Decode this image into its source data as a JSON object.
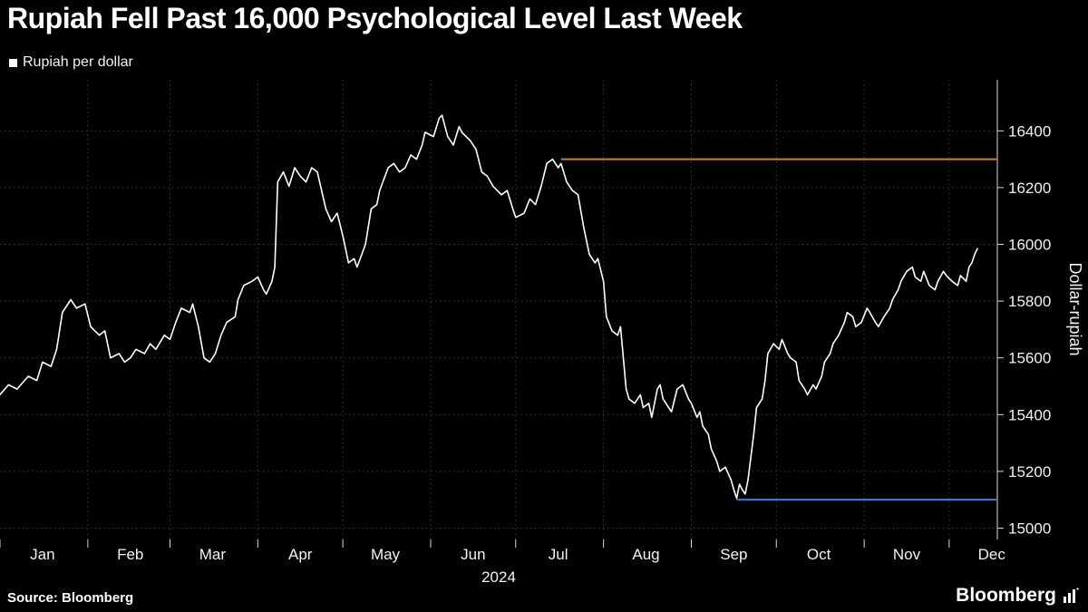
{
  "header": {
    "title": "Rupiah Fell Past 16,000 Psychological Level Last Week",
    "legend": {
      "label": "Rupiah per dollar",
      "swatch_color": "#ffffff"
    }
  },
  "footer": {
    "source": "Source:  Bloomberg",
    "brand": "Bloomberg"
  },
  "chart_data": {
    "type": "line",
    "title": "Rupiah Fell Past 16,000 Psychological Level Last Week",
    "series_name": "Rupiah per dollar",
    "xlabel": "2024",
    "ylabel": "Dollar-rupiah",
    "x_domain": [
      0,
      352
    ],
    "ylim": [
      14960,
      16580
    ],
    "yticks": [
      15000,
      15200,
      15400,
      15600,
      15800,
      16000,
      16200,
      16400
    ],
    "months": [
      "Jan",
      "Feb",
      "Mar",
      "Apr",
      "May",
      "Jun",
      "Jul",
      "Aug",
      "Sep",
      "Oct",
      "Nov",
      "Dec"
    ],
    "month_start_days": [
      0,
      31,
      60,
      91,
      121,
      152,
      182,
      213,
      244,
      274,
      305,
      335
    ],
    "grid": true,
    "legend_position": "top-left",
    "line_color": "#ffffff",
    "grid_color": "#3a3a3a",
    "axis_color": "#d8d8d8",
    "reference_lines": [
      {
        "name": "level-16300",
        "value": 16300,
        "from_day": 198,
        "to_day": 352,
        "color": "#c8832b"
      },
      {
        "name": "level-15100",
        "value": 15100,
        "from_day": 260,
        "to_day": 352,
        "color": "#3f7fdd"
      }
    ],
    "points": [
      [
        0,
        15470
      ],
      [
        3,
        15505
      ],
      [
        6,
        15490
      ],
      [
        10,
        15535
      ],
      [
        13,
        15520
      ],
      [
        15,
        15585
      ],
      [
        18,
        15570
      ],
      [
        20,
        15630
      ],
      [
        22,
        15760
      ],
      [
        25,
        15805
      ],
      [
        27,
        15775
      ],
      [
        30,
        15790
      ],
      [
        32,
        15710
      ],
      [
        35,
        15680
      ],
      [
        37,
        15695
      ],
      [
        39,
        15600
      ],
      [
        42,
        15615
      ],
      [
        44,
        15585
      ],
      [
        46,
        15600
      ],
      [
        48,
        15630
      ],
      [
        51,
        15615
      ],
      [
        53,
        15650
      ],
      [
        55,
        15630
      ],
      [
        58,
        15680
      ],
      [
        60,
        15665
      ],
      [
        62,
        15725
      ],
      [
        64,
        15775
      ],
      [
        67,
        15760
      ],
      [
        68,
        15790
      ],
      [
        70,
        15710
      ],
      [
        72,
        15600
      ],
      [
        74,
        15585
      ],
      [
        76,
        15615
      ],
      [
        78,
        15680
      ],
      [
        80,
        15725
      ],
      [
        83,
        15745
      ],
      [
        84,
        15805
      ],
      [
        86,
        15855
      ],
      [
        89,
        15870
      ],
      [
        91,
        15885
      ],
      [
        93,
        15840
      ],
      [
        94,
        15825
      ],
      [
        96,
        15870
      ],
      [
        97,
        15920
      ],
      [
        98,
        16220
      ],
      [
        100,
        16255
      ],
      [
        102,
        16205
      ],
      [
        104,
        16270
      ],
      [
        106,
        16240
      ],
      [
        108,
        16220
      ],
      [
        110,
        16270
      ],
      [
        112,
        16255
      ],
      [
        115,
        16125
      ],
      [
        117,
        16080
      ],
      [
        119,
        16110
      ],
      [
        121,
        16030
      ],
      [
        123,
        15935
      ],
      [
        125,
        15950
      ],
      [
        126,
        15920
      ],
      [
        129,
        16000
      ],
      [
        131,
        16125
      ],
      [
        133,
        16140
      ],
      [
        134,
        16190
      ],
      [
        137,
        16270
      ],
      [
        139,
        16285
      ],
      [
        141,
        16255
      ],
      [
        143,
        16270
      ],
      [
        145,
        16315
      ],
      [
        147,
        16300
      ],
      [
        149,
        16350
      ],
      [
        150,
        16395
      ],
      [
        153,
        16380
      ],
      [
        155,
        16445
      ],
      [
        156,
        16455
      ],
      [
        158,
        16380
      ],
      [
        160,
        16350
      ],
      [
        162,
        16415
      ],
      [
        163,
        16395
      ],
      [
        166,
        16365
      ],
      [
        168,
        16335
      ],
      [
        170,
        16255
      ],
      [
        172,
        16240
      ],
      [
        174,
        16205
      ],
      [
        177,
        16175
      ],
      [
        179,
        16190
      ],
      [
        181,
        16125
      ],
      [
        182,
        16095
      ],
      [
        185,
        16110
      ],
      [
        187,
        16160
      ],
      [
        189,
        16140
      ],
      [
        191,
        16205
      ],
      [
        193,
        16285
      ],
      [
        195,
        16300
      ],
      [
        197,
        16270
      ],
      [
        198,
        16285
      ],
      [
        200,
        16220
      ],
      [
        202,
        16190
      ],
      [
        204,
        16175
      ],
      [
        206,
        16060
      ],
      [
        208,
        15965
      ],
      [
        210,
        15935
      ],
      [
        211,
        15950
      ],
      [
        213,
        15870
      ],
      [
        214,
        15745
      ],
      [
        216,
        15695
      ],
      [
        218,
        15680
      ],
      [
        219,
        15710
      ],
      [
        221,
        15490
      ],
      [
        222,
        15455
      ],
      [
        224,
        15440
      ],
      [
        226,
        15470
      ],
      [
        227,
        15425
      ],
      [
        229,
        15440
      ],
      [
        230,
        15390
      ],
      [
        232,
        15490
      ],
      [
        233,
        15505
      ],
      [
        234,
        15455
      ],
      [
        236,
        15425
      ],
      [
        237,
        15410
      ],
      [
        239,
        15490
      ],
      [
        241,
        15505
      ],
      [
        243,
        15455
      ],
      [
        244,
        15440
      ],
      [
        246,
        15390
      ],
      [
        247,
        15410
      ],
      [
        248,
        15360
      ],
      [
        250,
        15330
      ],
      [
        251,
        15280
      ],
      [
        253,
        15235
      ],
      [
        254,
        15200
      ],
      [
        256,
        15215
      ],
      [
        258,
        15170
      ],
      [
        259,
        15135
      ],
      [
        260,
        15105
      ],
      [
        261,
        15155
      ],
      [
        262,
        15135
      ],
      [
        263,
        15120
      ],
      [
        264,
        15170
      ],
      [
        266,
        15330
      ],
      [
        267,
        15425
      ],
      [
        269,
        15455
      ],
      [
        270,
        15520
      ],
      [
        271,
        15615
      ],
      [
        273,
        15650
      ],
      [
        275,
        15630
      ],
      [
        276,
        15665
      ],
      [
        278,
        15615
      ],
      [
        279,
        15600
      ],
      [
        281,
        15585
      ],
      [
        282,
        15520
      ],
      [
        284,
        15490
      ],
      [
        285,
        15470
      ],
      [
        287,
        15505
      ],
      [
        288,
        15490
      ],
      [
        290,
        15535
      ],
      [
        291,
        15585
      ],
      [
        293,
        15615
      ],
      [
        294,
        15650
      ],
      [
        296,
        15680
      ],
      [
        298,
        15725
      ],
      [
        299,
        15760
      ],
      [
        301,
        15745
      ],
      [
        302,
        15710
      ],
      [
        304,
        15725
      ],
      [
        306,
        15775
      ],
      [
        307,
        15760
      ],
      [
        309,
        15725
      ],
      [
        310,
        15710
      ],
      [
        312,
        15745
      ],
      [
        314,
        15775
      ],
      [
        315,
        15805
      ],
      [
        317,
        15840
      ],
      [
        318,
        15870
      ],
      [
        320,
        15905
      ],
      [
        322,
        15920
      ],
      [
        323,
        15885
      ],
      [
        325,
        15870
      ],
      [
        326,
        15905
      ],
      [
        328,
        15855
      ],
      [
        330,
        15840
      ],
      [
        331,
        15870
      ],
      [
        333,
        15905
      ],
      [
        334,
        15890
      ],
      [
        336,
        15870
      ],
      [
        338,
        15855
      ],
      [
        339,
        15890
      ],
      [
        341,
        15870
      ],
      [
        342,
        15920
      ],
      [
        343,
        15935
      ],
      [
        344,
        15965
      ],
      [
        345,
        15985
      ]
    ]
  }
}
